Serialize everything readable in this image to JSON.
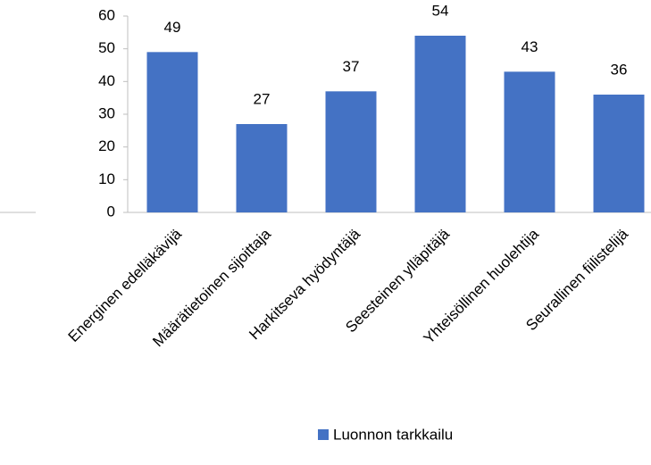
{
  "chart_data": {
    "type": "bar",
    "categories": [
      "Energinen edelläkävijä",
      "Määrätietoinen sijoittaja",
      "Harkitseva hyödyntäjä",
      "Seesteinen ylläpitäjä",
      "Yhteisöllinen huolehtija",
      "Seurallinen fiilistelijä"
    ],
    "series": [
      {
        "name": "Luonnon tarkkailu",
        "color": "#4472c4",
        "values": [
          49,
          27,
          37,
          54,
          43,
          36
        ]
      }
    ],
    "ylim": [
      0,
      60
    ],
    "yticks": [
      0,
      10,
      20,
      30,
      40,
      50,
      60
    ],
    "grid": false,
    "legend": "bottom"
  }
}
